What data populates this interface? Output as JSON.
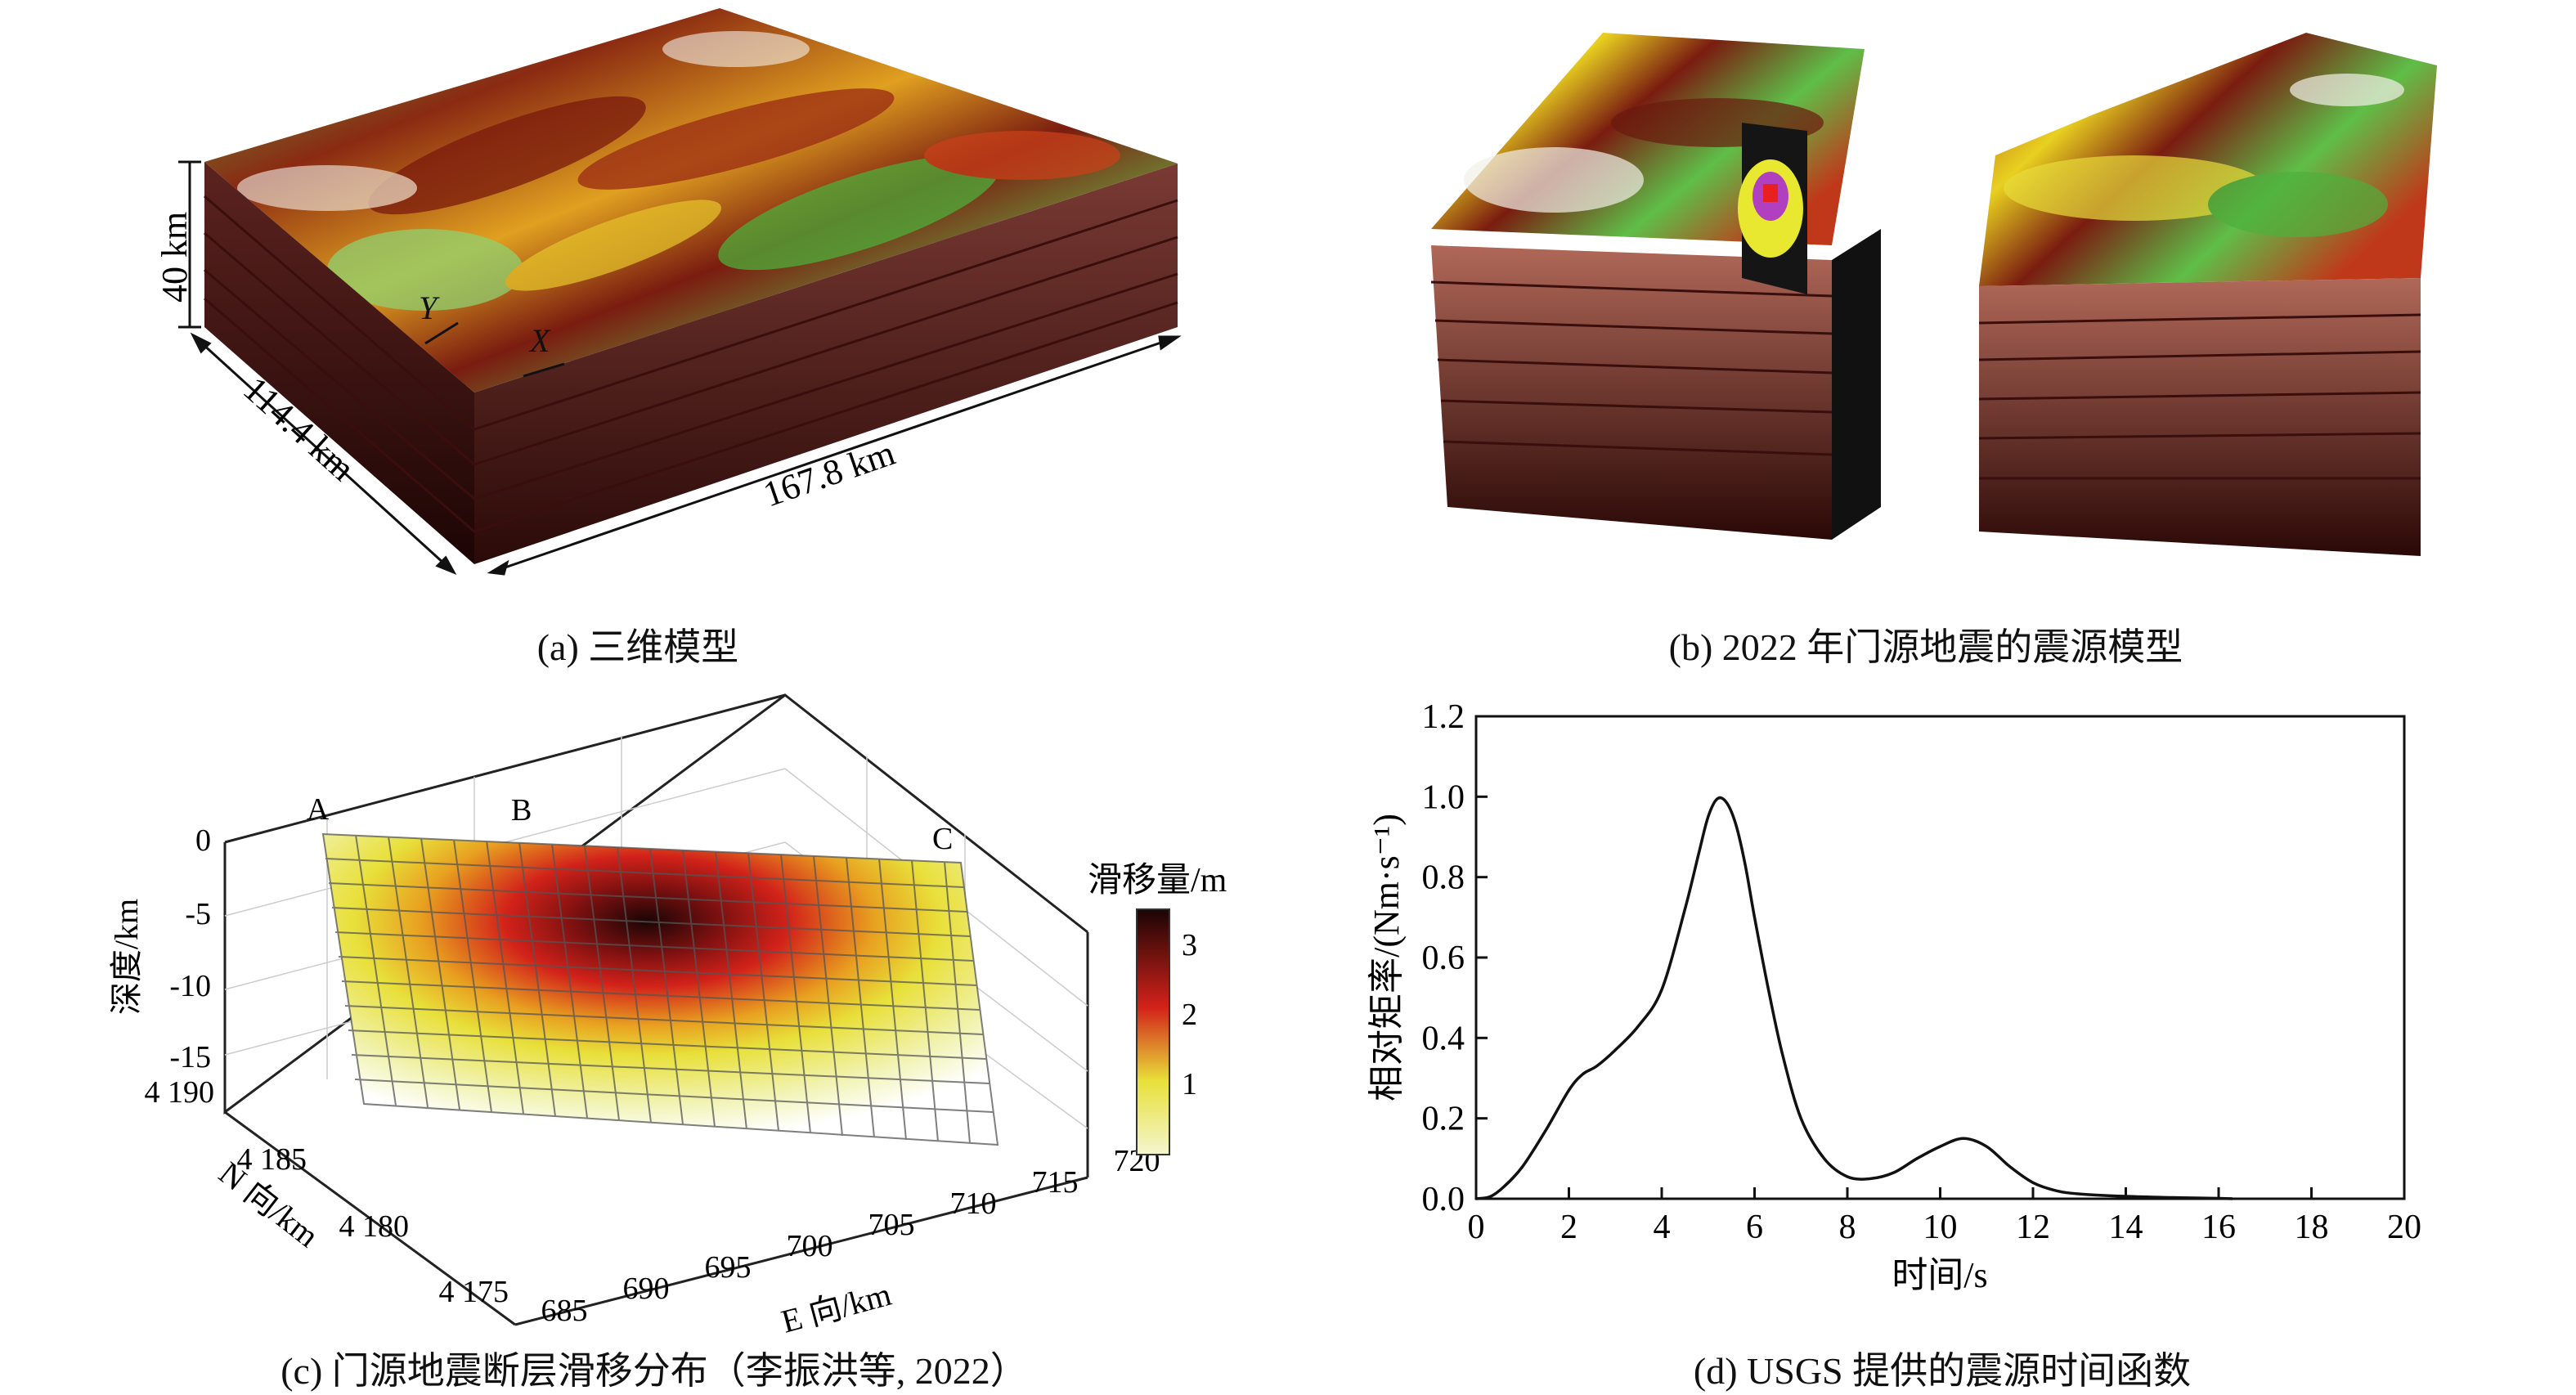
{
  "panel_a": {
    "caption": "(a) 三维模型",
    "dim_depth": "40 km",
    "dim_width": "114.4 km",
    "dim_length": "167.8 km",
    "axis_y": "Y",
    "axis_x": "X"
  },
  "panel_b": {
    "caption": "(b) 2022 年门源地震的震源模型"
  },
  "panel_c": {
    "caption": "(c) 门源地震断层滑移分布（李振洪等, 2022）",
    "z_label": "深度/km",
    "z_ticks": [
      "0",
      "-5",
      "-10",
      "-15"
    ],
    "n_label": "N 向/km",
    "n_ticks": [
      "4 190",
      "4 185",
      "4 180",
      "4 175"
    ],
    "e_label": "E 向/km",
    "e_ticks": [
      "685",
      "690",
      "695",
      "700",
      "705",
      "710",
      "715",
      "720"
    ],
    "points": [
      "A",
      "B",
      "C"
    ],
    "colorbar_title": "滑移量/m",
    "colorbar_ticks": [
      "3",
      "2",
      "1"
    ],
    "colors": {
      "low": "#f4f6d0",
      "mid": "#e8e03a",
      "high": "#d2221a",
      "max": "#1a0505"
    }
  },
  "panel_d": {
    "caption": "(d) USGS 提供的震源时间函数"
  },
  "chart_data": {
    "type": "line",
    "xlabel": "时间/s",
    "ylabel": "相对矩率/(Nm·s⁻¹)",
    "xlim": [
      0,
      20
    ],
    "ylim": [
      0,
      1.2
    ],
    "x_ticks": [
      "0",
      "2",
      "4",
      "6",
      "8",
      "10",
      "12",
      "14",
      "16",
      "18",
      "20"
    ],
    "y_ticks": [
      "0.0",
      "0.2",
      "0.4",
      "0.6",
      "0.8",
      "1.0",
      "1.2"
    ],
    "grid": false,
    "series": [
      {
        "x": [
          0,
          0.3,
          0.6,
          1.0,
          1.5,
          2.0,
          2.3,
          2.6,
          3.0,
          3.5,
          4.0,
          4.5,
          4.8,
          5.0,
          5.2,
          5.4,
          5.6,
          5.8,
          6.0,
          6.3,
          6.6,
          7.0,
          7.5,
          8.0,
          8.5,
          9.0,
          9.5,
          10.0,
          10.5,
          11.0,
          11.5,
          12.0,
          12.5,
          13.0,
          14.0,
          15.0,
          16.0,
          16.3
        ],
        "y": [
          0,
          0.005,
          0.03,
          0.08,
          0.17,
          0.27,
          0.31,
          0.33,
          0.37,
          0.43,
          0.52,
          0.72,
          0.86,
          0.95,
          0.995,
          0.985,
          0.93,
          0.83,
          0.7,
          0.52,
          0.36,
          0.2,
          0.1,
          0.055,
          0.05,
          0.065,
          0.1,
          0.13,
          0.15,
          0.13,
          0.08,
          0.04,
          0.02,
          0.012,
          0.006,
          0.003,
          0.001,
          0.0
        ]
      }
    ]
  }
}
